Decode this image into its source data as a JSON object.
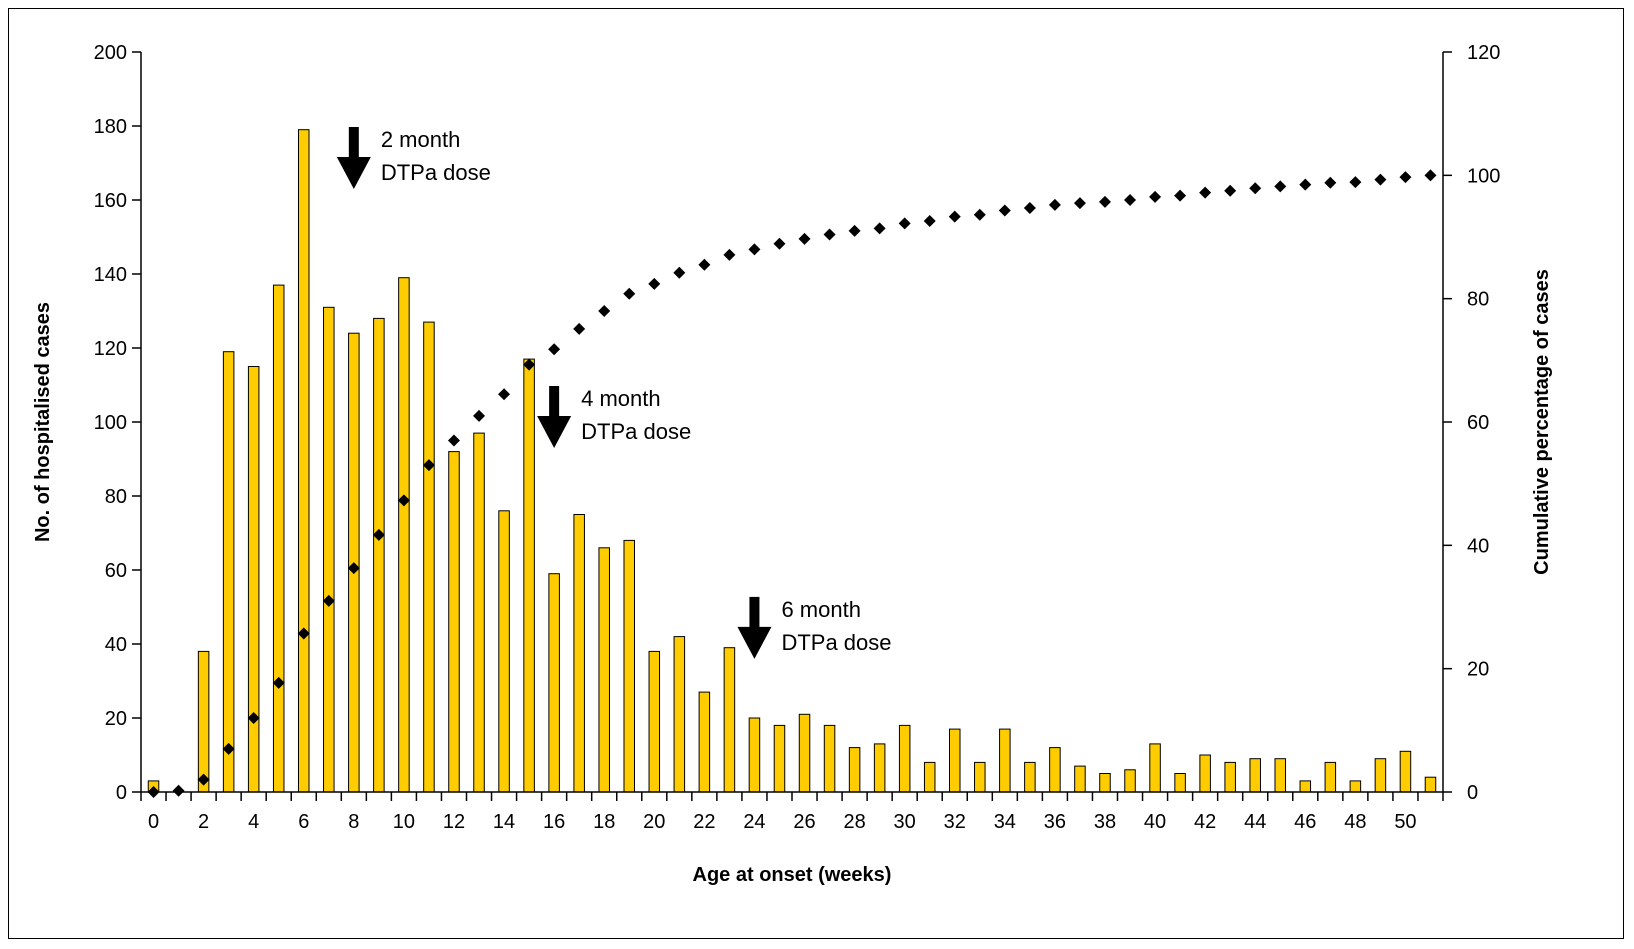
{
  "chart_data": {
    "type": "bar",
    "title": "",
    "xlabel": "Age at onset (weeks)",
    "ylabel": "No. of hospitalised cases",
    "y2label": "Cumulative percentage of cases",
    "ylim": [
      0,
      200
    ],
    "y2lim": [
      0,
      120
    ],
    "yticks": [
      "0",
      "20",
      "40",
      "60",
      "80",
      "100",
      "120",
      "140",
      "160",
      "180",
      "200"
    ],
    "y2ticks": [
      "0",
      "20",
      "40",
      "60",
      "80",
      "100",
      "120"
    ],
    "x": [
      0,
      1,
      2,
      3,
      4,
      5,
      6,
      7,
      8,
      9,
      10,
      11,
      12,
      13,
      14,
      15,
      16,
      17,
      18,
      19,
      20,
      21,
      22,
      23,
      24,
      25,
      26,
      27,
      28,
      29,
      30,
      31,
      32,
      33,
      34,
      35,
      36,
      37,
      38,
      39,
      40,
      41,
      42,
      43,
      44,
      45,
      46,
      47,
      48,
      49,
      50,
      51
    ],
    "xtick_labels": [
      "0",
      "2",
      "4",
      "6",
      "8",
      "10",
      "12",
      "14",
      "16",
      "18",
      "20",
      "22",
      "24",
      "26",
      "28",
      "30",
      "32",
      "34",
      "36",
      "38",
      "40",
      "42",
      "44",
      "46",
      "48",
      "50"
    ],
    "grid": false,
    "legend": "none",
    "series": [
      {
        "type": "bar",
        "axis": "left",
        "color": "#FFCC00",
        "values": [
          3,
          0,
          38,
          119,
          115,
          137,
          179,
          131,
          124,
          128,
          139,
          127,
          92,
          97,
          76,
          117,
          59,
          75,
          66,
          68,
          38,
          42,
          27,
          39,
          20,
          18,
          21,
          18,
          12,
          13,
          18,
          8,
          17,
          8,
          17,
          8,
          12,
          7,
          5,
          6,
          13,
          5,
          10,
          8,
          9,
          9,
          3,
          8,
          3,
          9,
          11,
          4
        ]
      },
      {
        "type": "scatter",
        "axis": "right",
        "color": "#000000",
        "values": [
          0,
          0.2,
          2,
          7,
          12,
          17.7,
          25.7,
          31,
          36.3,
          41.7,
          47.3,
          53,
          57,
          61,
          64.5,
          69.3,
          71.8,
          75.1,
          78,
          80.8,
          82.4,
          84.2,
          85.5,
          87.1,
          88,
          88.9,
          89.7,
          90.4,
          91,
          91.4,
          92.2,
          92.6,
          93.3,
          93.6,
          94.3,
          94.7,
          95.2,
          95.5,
          95.7,
          96,
          96.5,
          96.7,
          97.2,
          97.5,
          97.9,
          98.2,
          98.5,
          98.8,
          98.9,
          99.3,
          99.7,
          100
        ]
      }
    ],
    "annotations": [
      {
        "x": 8,
        "arrow_y": 170,
        "line1": "2 month",
        "line2": "DTPa dose"
      },
      {
        "x": 16,
        "arrow_y": 100,
        "line1": "4 month",
        "line2": "DTPa dose"
      },
      {
        "x": 24,
        "arrow_y": 43,
        "line1": "6 month",
        "line2": "DTPa dose"
      }
    ]
  }
}
